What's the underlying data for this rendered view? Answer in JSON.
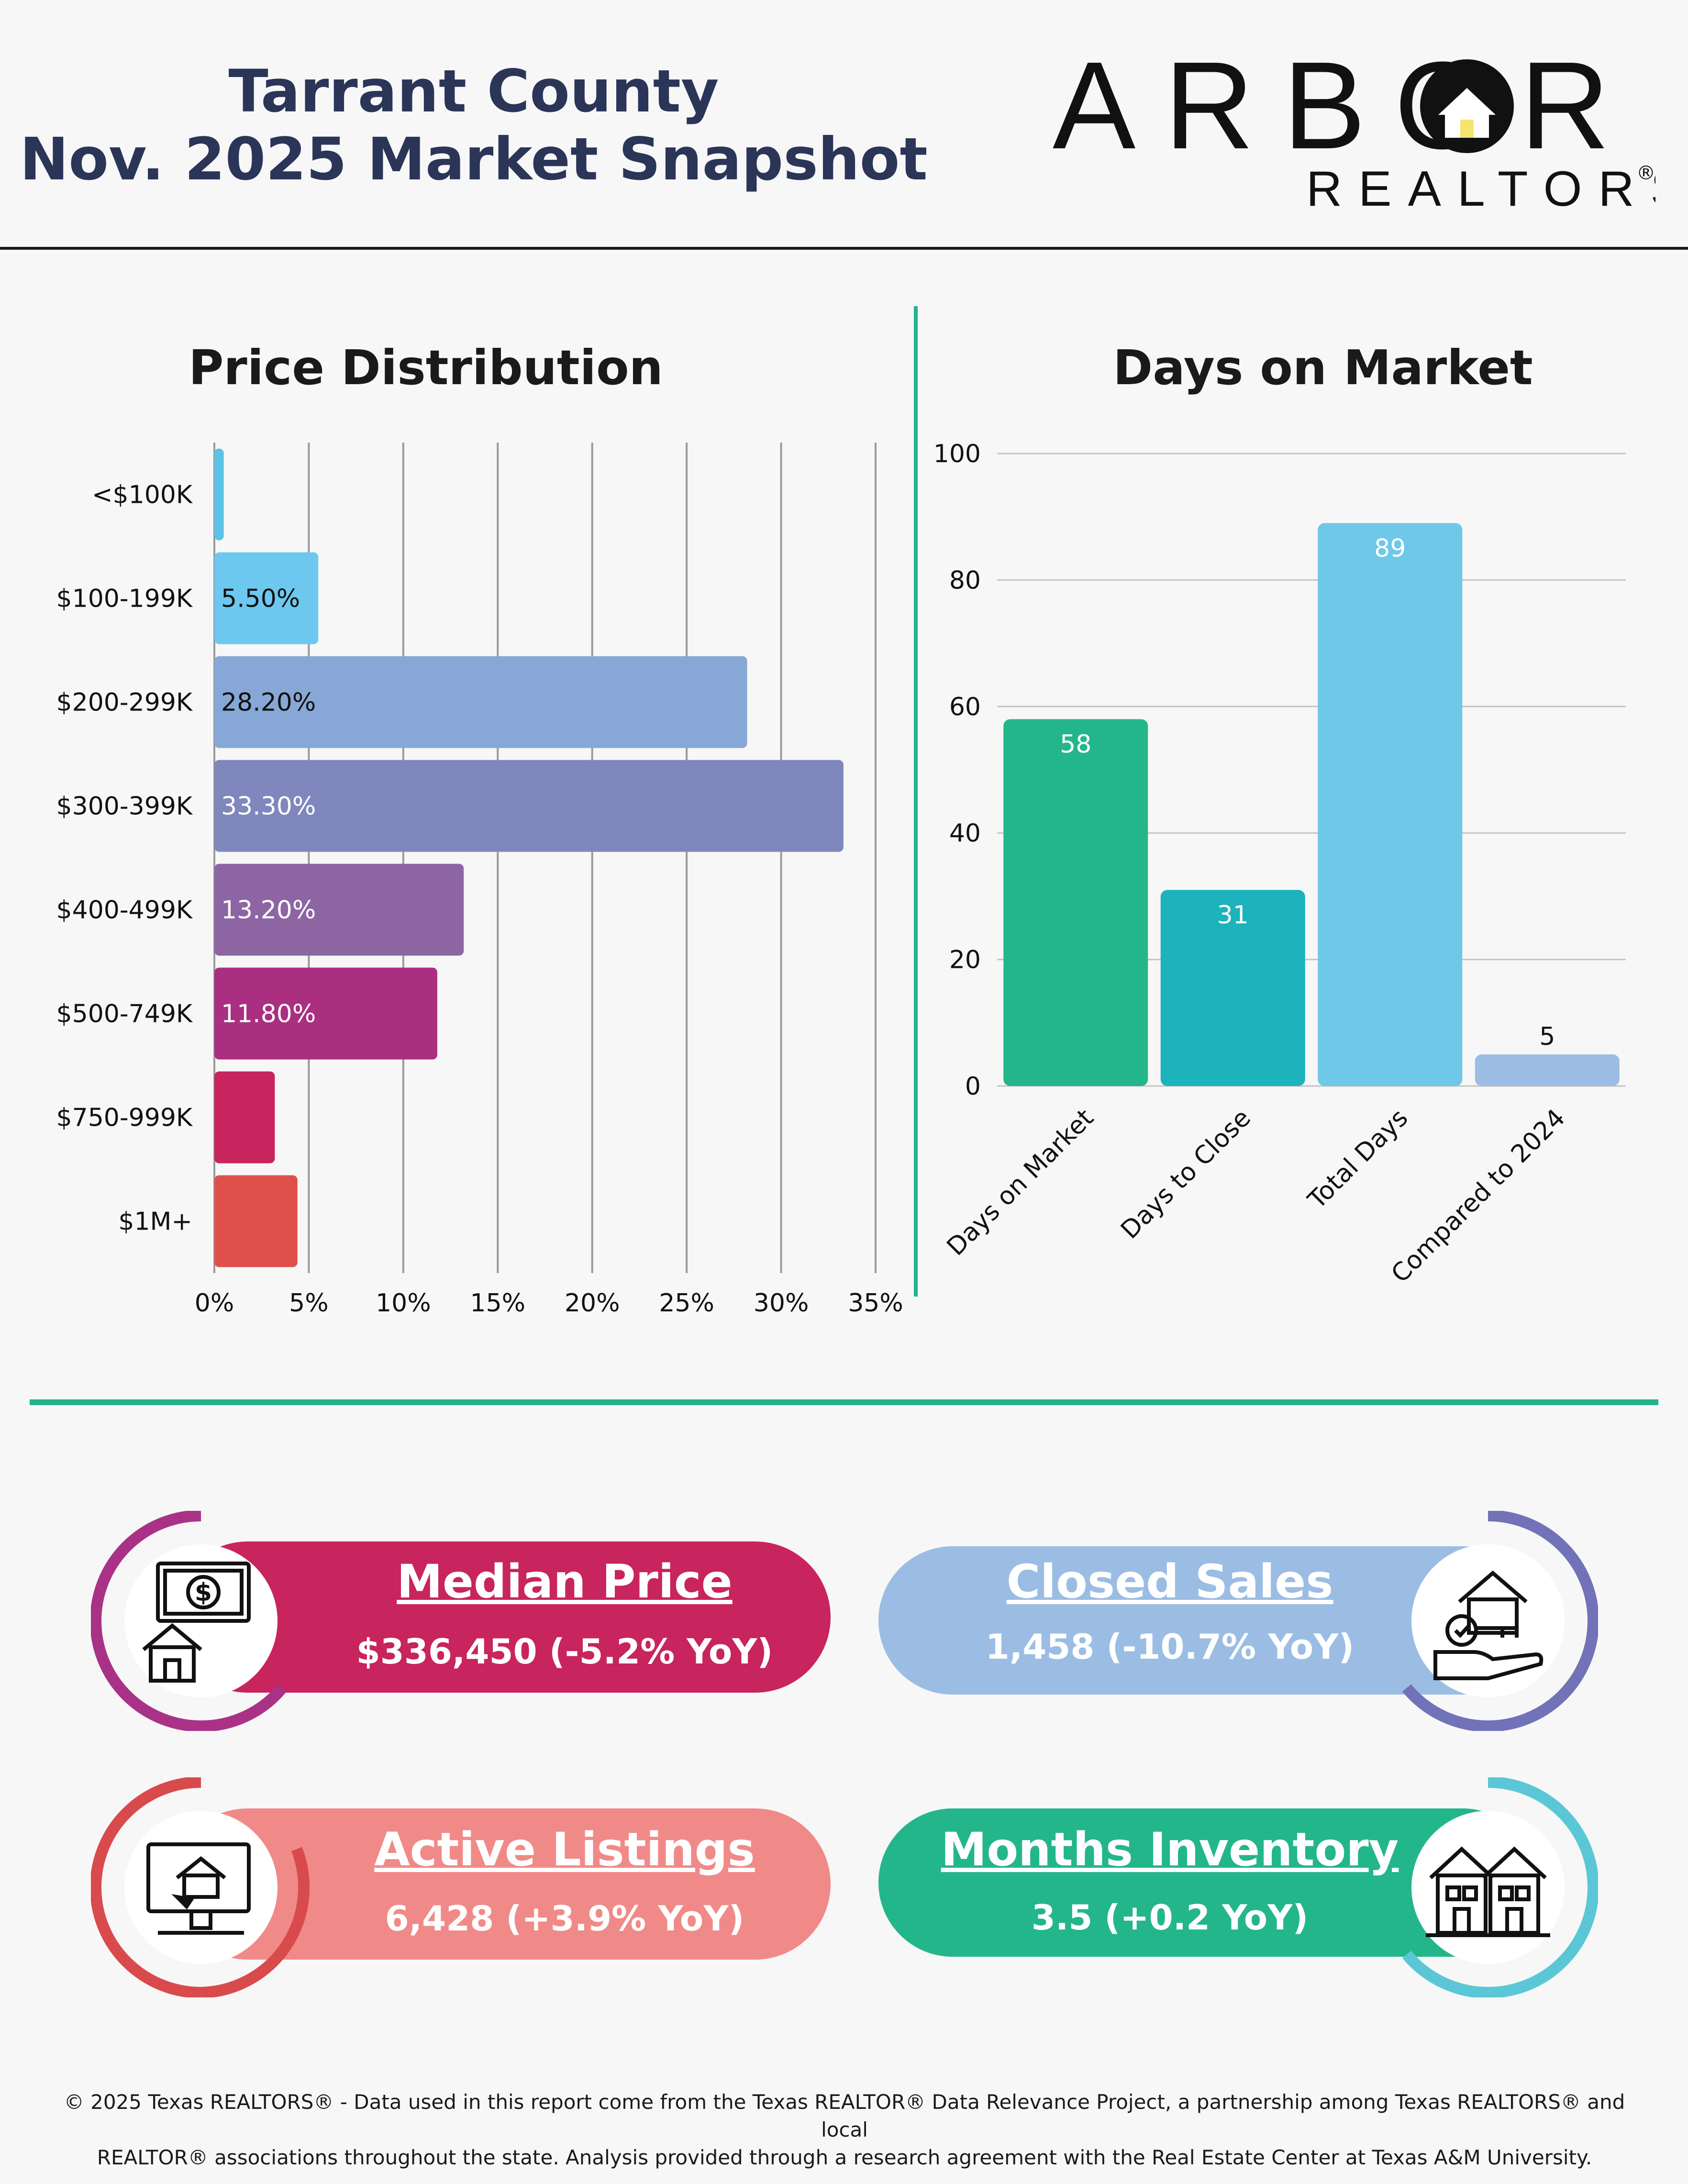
{
  "header": {
    "title_line1": "Tarrant County",
    "title_line2": "Nov. 2025 Market Snapshot"
  },
  "logo": {
    "word": "ARBOR",
    "sub": "REALTORS",
    "mark": "®"
  },
  "chart_data": [
    {
      "type": "bar",
      "orientation": "horizontal",
      "title": "Price Distribution",
      "categories": [
        "<$100K",
        "$100-199K",
        "$200-299K",
        "$300-399K",
        "$400-499K",
        "$500-749K",
        "$750-999K",
        "$1M+"
      ],
      "values": [
        0.5,
        5.5,
        28.2,
        33.3,
        13.2,
        11.8,
        3.2,
        4.4
      ],
      "data_labels": [
        "",
        "5.50%",
        "28.20%",
        "33.30%",
        "13.20%",
        "11.80%",
        "",
        ""
      ],
      "colors": [
        "#5cc2e8",
        "#6cc8ef",
        "#87a8d6",
        "#7f87bd",
        "#8d65a3",
        "#aa2f80",
        "#c8245e",
        "#e0504a"
      ],
      "xticks": [
        "0%",
        "5%",
        "10%",
        "15%",
        "20%",
        "25%",
        "30%",
        "35%"
      ],
      "xlim": [
        0,
        35
      ],
      "grid": true
    },
    {
      "type": "bar",
      "title": "Days on Market",
      "categories": [
        "Days on Market",
        "Days to Close",
        "Total Days",
        "Compared to 2024"
      ],
      "values": [
        58,
        31,
        89,
        5
      ],
      "data_labels": [
        "58",
        "31",
        "89",
        "5"
      ],
      "colors": [
        "#24b68b",
        "#1cb3bd",
        "#6ec8e8",
        "#9cbde4"
      ],
      "yticks": [
        "0",
        "20",
        "40",
        "60",
        "80",
        "100"
      ],
      "ylim": [
        0,
        100
      ],
      "grid": true
    }
  ],
  "cards": {
    "median": {
      "title": "Median Price",
      "value": "$336,450 (-5.2% YoY)",
      "icon": "money-house-icon",
      "color": "#c8245e",
      "ring": "#a93287"
    },
    "closed": {
      "title": "Closed Sales",
      "value": "1,458 (-10.7% YoY)",
      "icon": "house-key-hand-icon",
      "color": "#9bbde4",
      "ring": "#7172b8"
    },
    "active": {
      "title": "Active Listings",
      "value": "6,428 (+3.9% YoY)",
      "icon": "computer-house-icon",
      "color": "#f08a88",
      "ring": "#d94a4c"
    },
    "months": {
      "title": "Months Inventory",
      "value": "3.5 (+0.2 YoY)",
      "icon": "townhouses-icon",
      "color": "#24b68b",
      "ring": "#5bc7d6"
    }
  },
  "footer": {
    "line1": "© 2025 Texas REALTORS® - Data used in this report come from the Texas REALTOR® Data Relevance Project, a partnership among Texas REALTORS® and local",
    "line2": "REALTOR® associations throughout the state. Analysis provided through a research agreement with the Real Estate Center at Texas A&M University."
  }
}
